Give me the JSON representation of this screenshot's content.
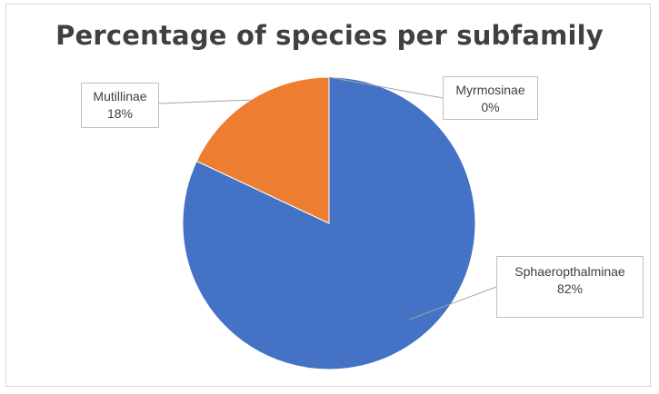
{
  "chart_data": {
    "type": "pie",
    "title": "Percentage of species per subfamily",
    "slices": [
      {
        "label": "Sphaeropthalminae",
        "value_text": "82%",
        "value": 82,
        "color": "#4472C4"
      },
      {
        "label": "Mutillinae",
        "value_text": "18%",
        "value": 18,
        "color": "#ED7D31"
      },
      {
        "label": "Myrmosinae",
        "value_text": "0%",
        "value": 0,
        "color": "#A5A5A5"
      }
    ],
    "legend": "none"
  }
}
